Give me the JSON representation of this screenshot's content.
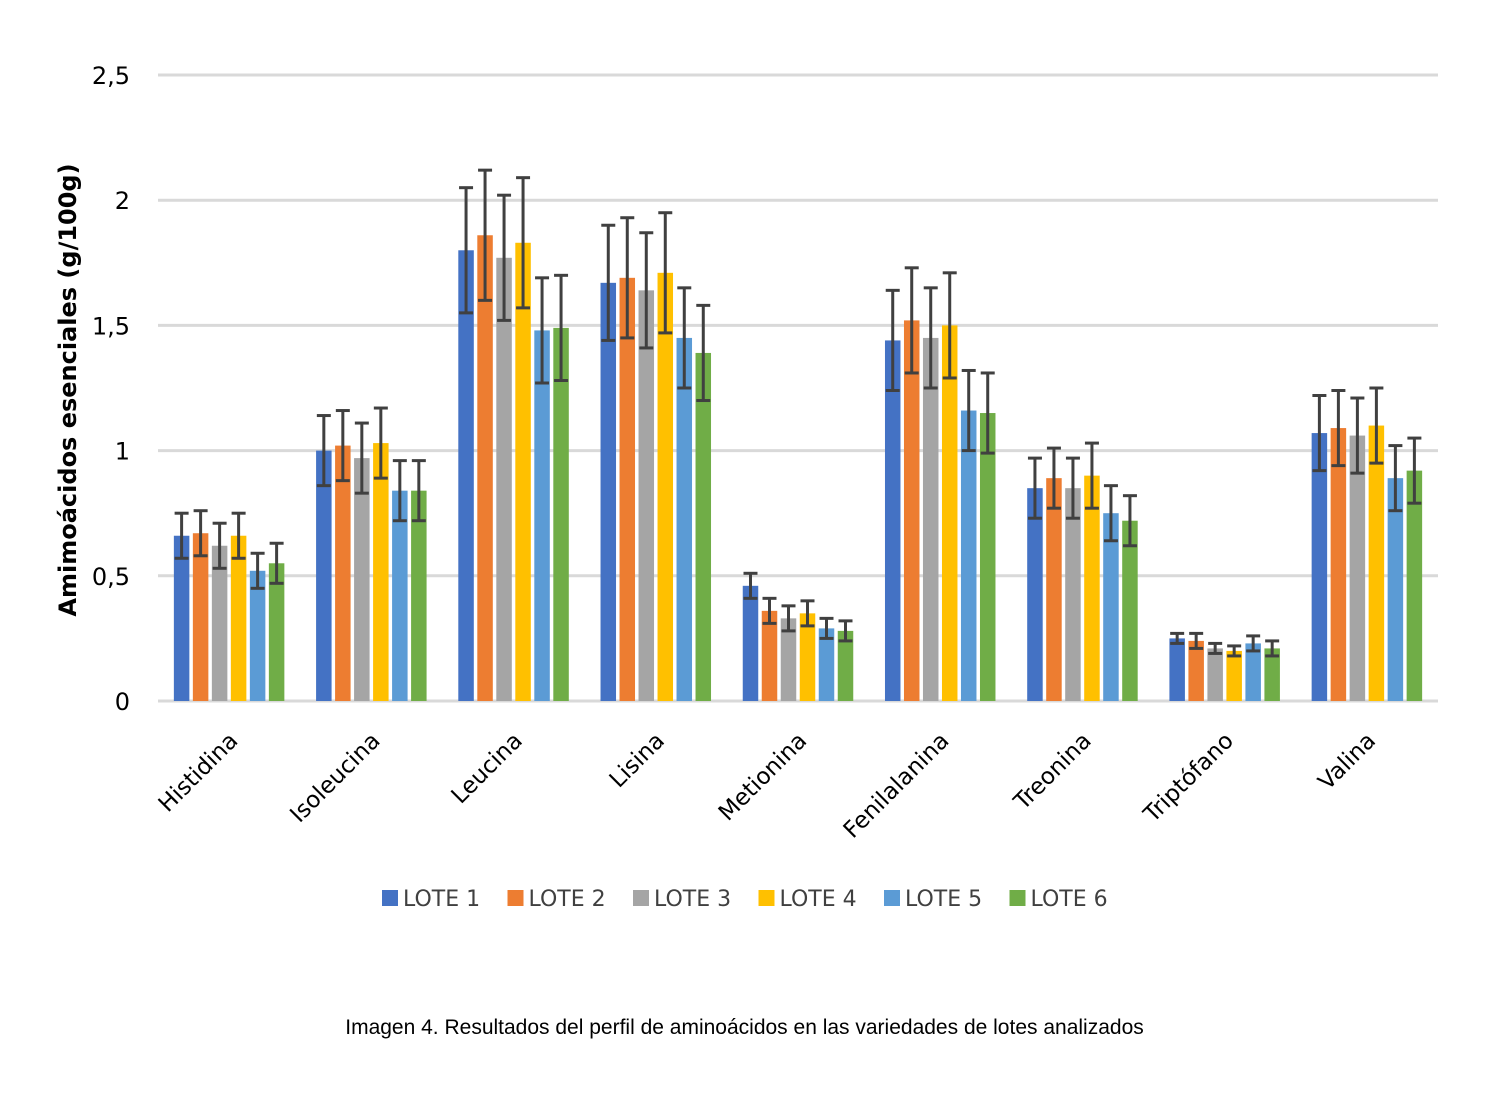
{
  "chart_data": {
    "type": "bar",
    "ylabel": "Amimoácidos esenciales (g/100g)",
    "xlabel": "",
    "ylim": [
      0,
      2.5
    ],
    "yticks": [
      {
        "value": 0,
        "label": "0"
      },
      {
        "value": 0.5,
        "label": "0,5"
      },
      {
        "value": 1,
        "label": "1"
      },
      {
        "value": 1.5,
        "label": "1,5"
      },
      {
        "value": 2,
        "label": "2"
      },
      {
        "value": 2.5,
        "label": "2,5"
      }
    ],
    "grid": true,
    "legend_position": "bottom",
    "categories": [
      "Histidina",
      "Isoleucina",
      "Leucina",
      "Lisina",
      "Metionina",
      "Fenilalanina",
      "Treonina",
      "Triptófano",
      "Valina"
    ],
    "series": [
      {
        "name": "LOTE 1",
        "color": "#4472C4",
        "values": [
          0.66,
          1.0,
          1.8,
          1.67,
          0.46,
          1.44,
          0.85,
          0.25,
          1.07
        ],
        "error": [
          0.09,
          0.14,
          0.25,
          0.23,
          0.05,
          0.2,
          0.12,
          0.02,
          0.15
        ]
      },
      {
        "name": "LOTE 2",
        "color": "#ED7D31",
        "values": [
          0.67,
          1.02,
          1.86,
          1.69,
          0.36,
          1.52,
          0.89,
          0.24,
          1.09
        ],
        "error": [
          0.09,
          0.14,
          0.26,
          0.24,
          0.05,
          0.21,
          0.12,
          0.03,
          0.15
        ]
      },
      {
        "name": "LOTE 3",
        "color": "#A5A5A5",
        "values": [
          0.62,
          0.97,
          1.77,
          1.64,
          0.33,
          1.45,
          0.85,
          0.21,
          1.06
        ],
        "error": [
          0.09,
          0.14,
          0.25,
          0.23,
          0.05,
          0.2,
          0.12,
          0.02,
          0.15
        ]
      },
      {
        "name": "LOTE 4",
        "color": "#FFC000",
        "values": [
          0.66,
          1.03,
          1.83,
          1.71,
          0.35,
          1.5,
          0.9,
          0.2,
          1.1
        ],
        "error": [
          0.09,
          0.14,
          0.26,
          0.24,
          0.05,
          0.21,
          0.13,
          0.02,
          0.15
        ]
      },
      {
        "name": "LOTE 5",
        "color": "#5B9BD5",
        "values": [
          0.52,
          0.84,
          1.48,
          1.45,
          0.29,
          1.16,
          0.75,
          0.23,
          0.89
        ],
        "error": [
          0.07,
          0.12,
          0.21,
          0.2,
          0.04,
          0.16,
          0.11,
          0.03,
          0.13
        ]
      },
      {
        "name": "LOTE 6",
        "color": "#70AD47",
        "values": [
          0.55,
          0.84,
          1.49,
          1.39,
          0.28,
          1.15,
          0.72,
          0.21,
          0.92
        ],
        "error": [
          0.08,
          0.12,
          0.21,
          0.19,
          0.04,
          0.16,
          0.1,
          0.03,
          0.13
        ]
      }
    ],
    "gridline_color": "#D9D9D9",
    "errorbar_color": "#404040"
  },
  "caption": "Imagen 4. Resultados del perfil de aminoácidos en las variedades de lotes analizados"
}
